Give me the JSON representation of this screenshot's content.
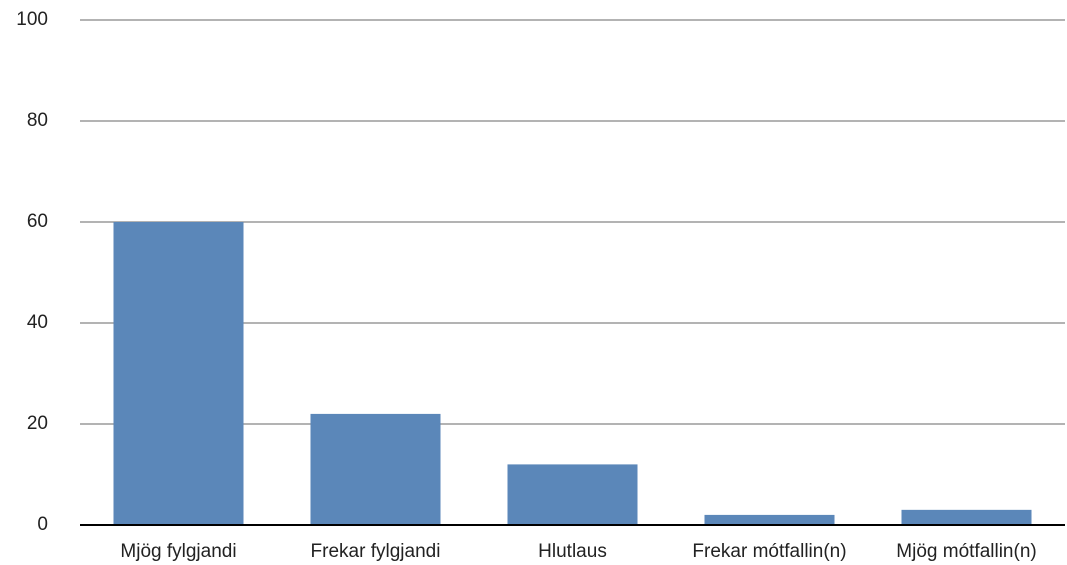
{
  "chart_data": {
    "type": "bar",
    "categories": [
      "Mjög fylgjandi",
      "Frekar fylgjandi",
      "Hlutlaus",
      "Frekar mótfallin(n)",
      "Mjög mótfallin(n)"
    ],
    "values": [
      60,
      22,
      12,
      2,
      3
    ],
    "color": "#5b87b9",
    "ylim": [
      0,
      100
    ],
    "yticks": [
      0,
      20,
      40,
      60,
      80,
      100
    ],
    "grid": true
  }
}
